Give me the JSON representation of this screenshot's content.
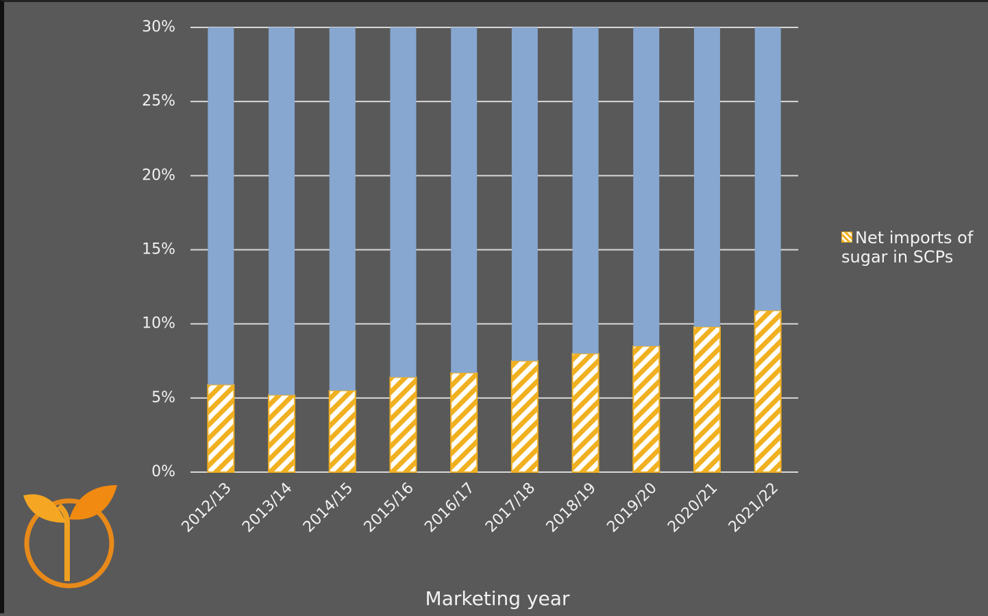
{
  "chart_data": {
    "type": "stacked_bar",
    "x_label": "Marketing year",
    "categories": [
      "2012/13",
      "2013/14",
      "2014/15",
      "2015/16",
      "2016/17",
      "2017/18",
      "2018/19",
      "2019/20",
      "2020/21",
      "2021/22"
    ],
    "series": [
      {
        "name": "Net imports of sugar in SCPs",
        "color": "#f0b020",
        "hatch": true,
        "values": [
          5.9,
          5.2,
          5.5,
          6.4,
          6.7,
          7.5,
          8.0,
          8.5,
          9.8,
          10.9
        ]
      },
      {
        "color": "#87a7d0",
        "values": [
          24.1,
          24.8,
          24.5,
          23.6,
          23.3,
          22.5,
          22.0,
          21.5,
          20.2,
          19.1
        ]
      }
    ],
    "ylim": [
      0,
      30
    ],
    "yticks": [
      {
        "value": 0,
        "label": "0%"
      },
      {
        "value": 5,
        "label": "5%"
      },
      {
        "value": 10,
        "label": "10%"
      },
      {
        "value": 15,
        "label": "15%"
      },
      {
        "value": 20,
        "label": "20%"
      },
      {
        "value": 25,
        "label": "25%"
      },
      {
        "value": 30,
        "label": "30%"
      }
    ],
    "grid": true
  }
}
